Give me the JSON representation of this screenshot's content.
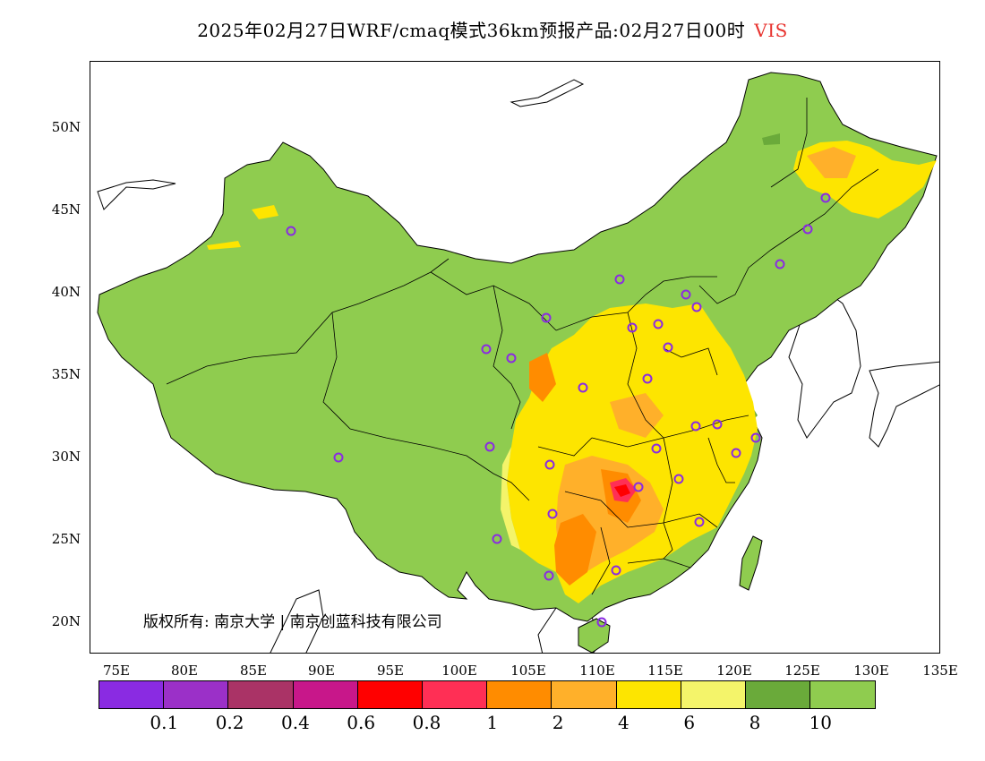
{
  "title": {
    "text": "2025年02月27日WRF/cmaq模式36km预报产品:02月27日00时",
    "variable": "VIS"
  },
  "map": {
    "lat_labels": [
      "50N",
      "45N",
      "40N",
      "35N",
      "30N",
      "25N",
      "20N"
    ],
    "lon_labels": [
      "75E",
      "80E",
      "85E",
      "90E",
      "95E",
      "100E",
      "105E",
      "110E",
      "115E",
      "120E",
      "125E",
      "130E",
      "135E"
    ],
    "copyright": "版权所有: 南京大学 | 南京创蓝科技有限公司",
    "colors": {
      "land_clear": "#8fcc4f",
      "land_dark": "#6aaa3a",
      "yellow": "#fde500",
      "light_yellow": "#f4f46a",
      "orange": "#ffb02a",
      "dark_orange": "#ff8c00",
      "red_pink": "#ff2f55",
      "red": "#ff0000",
      "station": "#8a2be2"
    }
  },
  "legend": {
    "colors": [
      "#8a2be2",
      "#9b30c8",
      "#aa3366",
      "#c8178a",
      "#ff0000",
      "#ff2f55",
      "#ff8c00",
      "#ffb02a",
      "#fde500",
      "#f4f46a",
      "#6aaa3a",
      "#8fcc4f"
    ],
    "labels": [
      "0.1",
      "0.2",
      "0.4",
      "0.6",
      "0.8",
      "1",
      "2",
      "4",
      "6",
      "8",
      "10"
    ]
  }
}
